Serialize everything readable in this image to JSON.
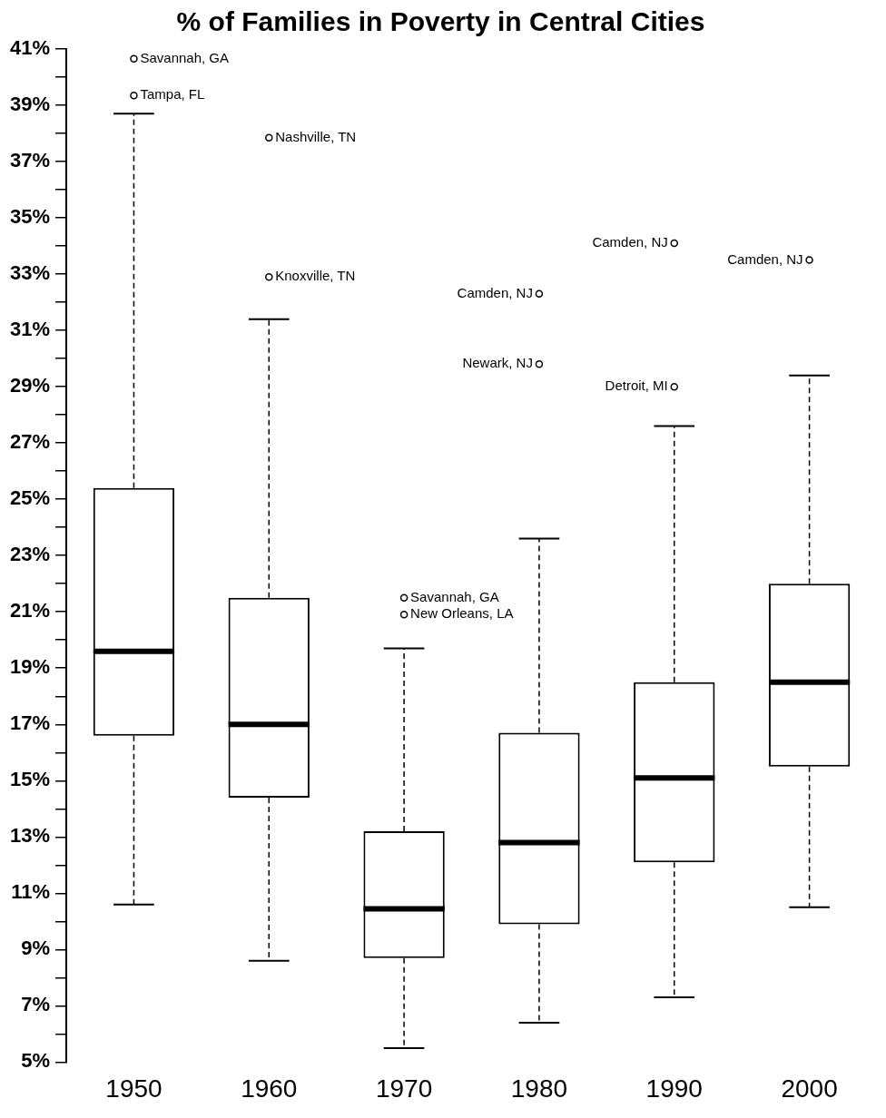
{
  "chart_data": {
    "type": "box",
    "title": "% of Families in Poverty in Central Cities",
    "categories": [
      "1950",
      "1960",
      "1970",
      "1980",
      "1990",
      "2000"
    ],
    "boxes": [
      {
        "low": 10.6,
        "q1": 16.6,
        "median": 19.6,
        "q3": 25.4,
        "high": 38.7,
        "outliers": [
          40.65,
          39.35
        ]
      },
      {
        "low": 8.6,
        "q1": 14.4,
        "median": 17.0,
        "q3": 21.5,
        "high": 31.4,
        "outliers": [
          37.85,
          32.9
        ]
      },
      {
        "low": 5.5,
        "q1": 8.7,
        "median": 10.45,
        "q3": 13.2,
        "high": 19.7,
        "outliers": [
          21.5,
          20.9
        ]
      },
      {
        "low": 6.4,
        "q1": 9.9,
        "median": 12.8,
        "q3": 16.7,
        "high": 23.6,
        "outliers": [
          32.3,
          29.8
        ]
      },
      {
        "low": 7.3,
        "q1": 12.1,
        "median": 15.1,
        "q3": 18.5,
        "high": 27.6,
        "outliers": [
          34.1,
          29.0
        ]
      },
      {
        "low": 10.5,
        "q1": 15.5,
        "median": 18.5,
        "q3": 22.0,
        "high": 29.4,
        "outliers": [
          33.5
        ]
      }
    ],
    "color": "#000000",
    "marker": "circle",
    "ylim": [
      5,
      41
    ],
    "yticks": [
      {
        "value": 5,
        "label": "5%"
      },
      {
        "value": 6,
        "label": null
      },
      {
        "value": 7,
        "label": "7%"
      },
      {
        "value": 8,
        "label": null
      },
      {
        "value": 9,
        "label": "9%"
      },
      {
        "value": 10,
        "label": null
      },
      {
        "value": 11,
        "label": "11%"
      },
      {
        "value": 12,
        "label": null
      },
      {
        "value": 13,
        "label": "13%"
      },
      {
        "value": 14,
        "label": null
      },
      {
        "value": 15,
        "label": "15%"
      },
      {
        "value": 16,
        "label": null
      },
      {
        "value": 17,
        "label": "17%"
      },
      {
        "value": 18,
        "label": null
      },
      {
        "value": 19,
        "label": "19%"
      },
      {
        "value": 20,
        "label": null
      },
      {
        "value": 21,
        "label": "21%"
      },
      {
        "value": 22,
        "label": null
      },
      {
        "value": 23,
        "label": "23%"
      },
      {
        "value": 24,
        "label": null
      },
      {
        "value": 25,
        "label": "25%"
      },
      {
        "value": 26,
        "label": null
      },
      {
        "value": 27,
        "label": "27%"
      },
      {
        "value": 28,
        "label": null
      },
      {
        "value": 29,
        "label": "29%"
      },
      {
        "value": 30,
        "label": null
      },
      {
        "value": 31,
        "label": "31%"
      },
      {
        "value": 32,
        "label": null
      },
      {
        "value": 33,
        "label": "33%"
      },
      {
        "value": 34,
        "label": null
      },
      {
        "value": 35,
        "label": "35%"
      },
      {
        "value": 36,
        "label": null
      },
      {
        "value": 37,
        "label": "37%"
      },
      {
        "value": 38,
        "label": null
      },
      {
        "value": 39,
        "label": "39%"
      },
      {
        "value": 40,
        "label": null
      },
      {
        "value": 41,
        "label": "41%"
      }
    ],
    "annotations": [
      "Savannah, GA",
      "Tampa, FL",
      "Nashville, TN",
      "Knoxville, TN",
      "Savannah, GA",
      "New Orleans, LA",
      "Camden, NJ",
      "Newark, NJ",
      "Camden, NJ",
      "Detroit, MI",
      "Camden, NJ"
    ]
  }
}
